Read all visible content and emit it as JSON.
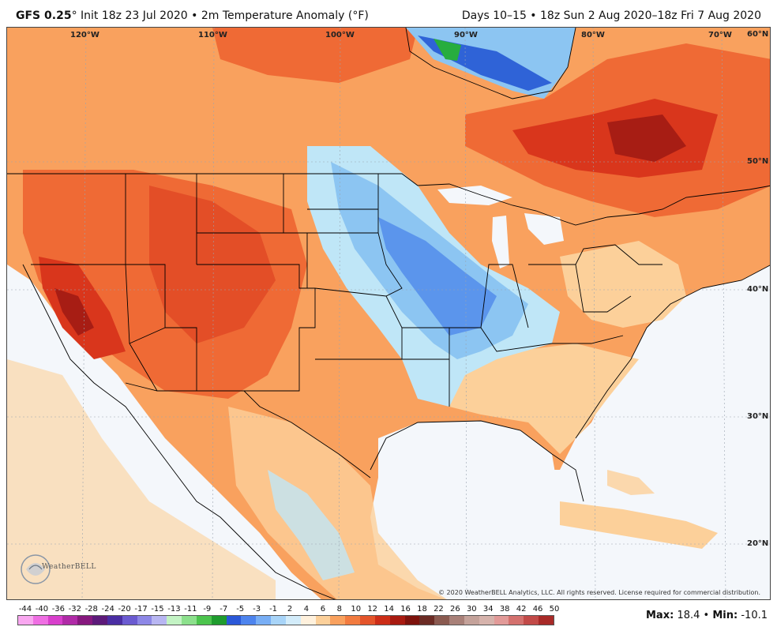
{
  "header": {
    "model": "GFS 0.25",
    "init": "Init 18z 23 Jul 2020",
    "separator": "•",
    "product": "2m Temperature Anomaly (°F)",
    "valid": "Days 10–15 • 18z Sun 2 Aug 2020–18z Fri 7 Aug 2020"
  },
  "map": {
    "longitudes": [
      "120°W",
      "110°W",
      "100°W",
      "90°W",
      "80°W",
      "70°W"
    ],
    "latitudes": [
      "60°N",
      "50°N",
      "40°N",
      "30°N",
      "20°N"
    ],
    "copyright": "© 2020 WeatherBELL Analytics, LLC. All rights reserved. License required for commercial distribution.",
    "logo": "WeatherBELL",
    "colors": {
      "ocean": "#f4f7fb",
      "warm_light": "#fcd09a",
      "warm_med": "#f9a15e",
      "warm_strong": "#ef6a35",
      "warm_hot": "#d9361c",
      "warm_extreme": "#a71d14",
      "cool_light": "#bfe6f7",
      "cool_med": "#8cc5f2",
      "cool_strong": "#5b95ec",
      "cool_deep": "#2f63d7",
      "green": "#27ad3e"
    }
  },
  "legend": {
    "labels": [
      "-44",
      "-40",
      "-36",
      "-32",
      "-28",
      "-24",
      "-20",
      "-17",
      "-15",
      "-13",
      "-11",
      "-9",
      "-7",
      "-5",
      "-3",
      "-1",
      "2",
      "4",
      "6",
      "8",
      "10",
      "12",
      "14",
      "16",
      "18",
      "22",
      "26",
      "30",
      "34",
      "38",
      "42",
      "46",
      "50"
    ],
    "colors": [
      "#f9a7f0",
      "#ef6fe3",
      "#d83fcc",
      "#b02aa7",
      "#86187e",
      "#5d1a7a",
      "#4a2ea3",
      "#6b5bd1",
      "#8d87e6",
      "#b8b6f2",
      "#c3f3c4",
      "#8ce08c",
      "#4cc44d",
      "#1f9c2e",
      "#2b58d8",
      "#4d84ee",
      "#78aef5",
      "#a8d4f8",
      "#d3ecfa",
      "#fff1dd",
      "#fcd09a",
      "#f9a15e",
      "#f27b3f",
      "#e4542a",
      "#cc2d17",
      "#a81a10",
      "#7d120c",
      "#6b2b24",
      "#8a5a50",
      "#a88078",
      "#c4a29a",
      "#d6b3ac",
      "#e29a98",
      "#d4716e",
      "#c24a48",
      "#a82a28"
    ]
  },
  "stats": {
    "max_label": "Max",
    "max_value": "18.4",
    "min_label": "Min",
    "min_value": "-10.1"
  }
}
